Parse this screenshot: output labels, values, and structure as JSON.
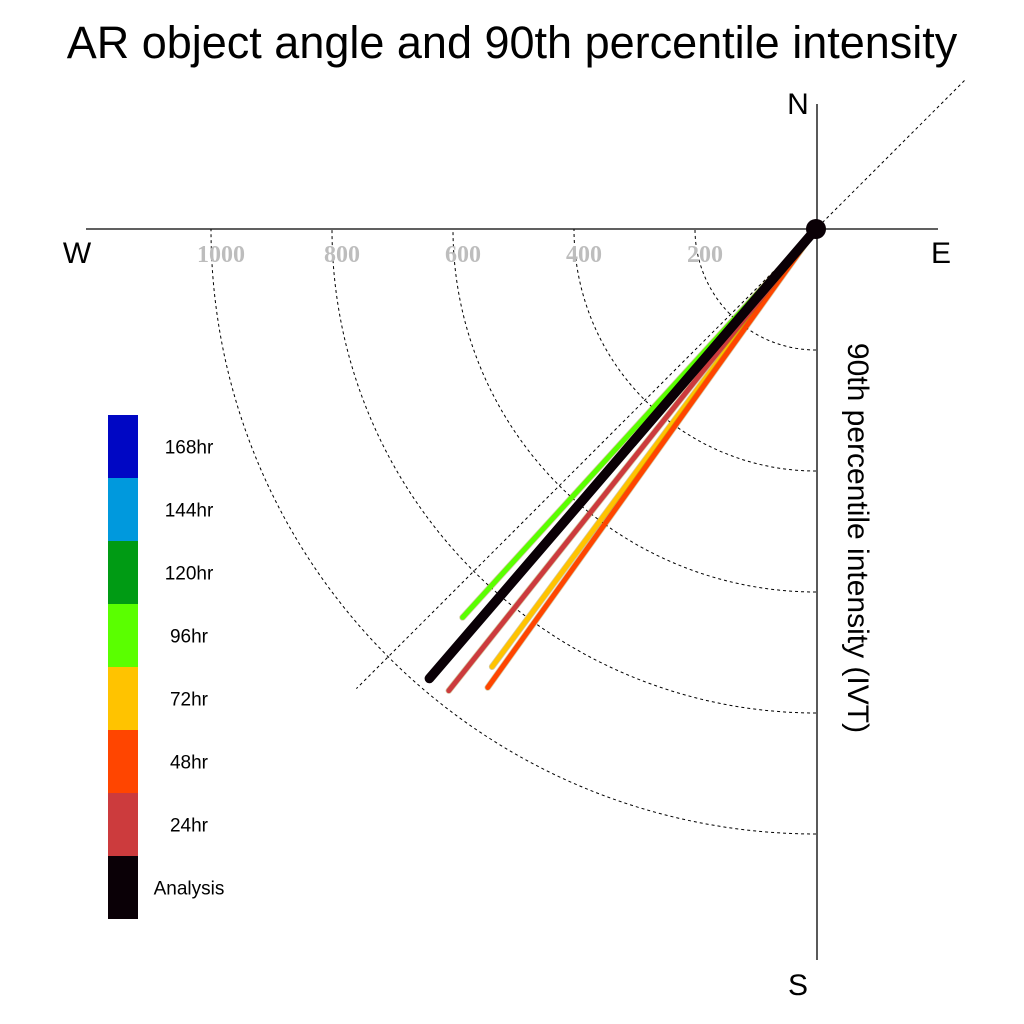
{
  "title": "AR object angle and 90th percentile intensity",
  "chart_data": {
    "type": "polar-line",
    "title": "AR object angle and 90th percentile intensity",
    "radial_axis_label": "90th percentile intensity (IVT)",
    "radial_ticks": [
      200,
      400,
      600,
      800,
      1000
    ],
    "compass": [
      "N",
      "E",
      "S",
      "W"
    ],
    "series": [
      {
        "name": "Analysis",
        "color": "#0a0006",
        "angle_deg": 220.7,
        "intensity": 980
      },
      {
        "name": "24hr",
        "color": "#cc3b3d",
        "angle_deg": 218.5,
        "intensity": 975
      },
      {
        "name": "48hr",
        "color": "#ff4500",
        "angle_deg": 215.6,
        "intensity": 932
      },
      {
        "name": "72hr",
        "color": "#ffc300",
        "angle_deg": 216.5,
        "intensity": 900
      },
      {
        "name": "96hr",
        "color": "#5aff00",
        "angle_deg": 222.3,
        "intensity": 868
      }
    ],
    "legend": [
      "168hr",
      "144hr",
      "120hr",
      "96hr",
      "72hr",
      "48hr",
      "24hr",
      "Analysis"
    ],
    "legend_colors": [
      "#0007c4",
      "#0099dd",
      "#009b14",
      "#5aff00",
      "#ffc300",
      "#ff4500",
      "#cc3b3d",
      "#0a0006"
    ]
  }
}
